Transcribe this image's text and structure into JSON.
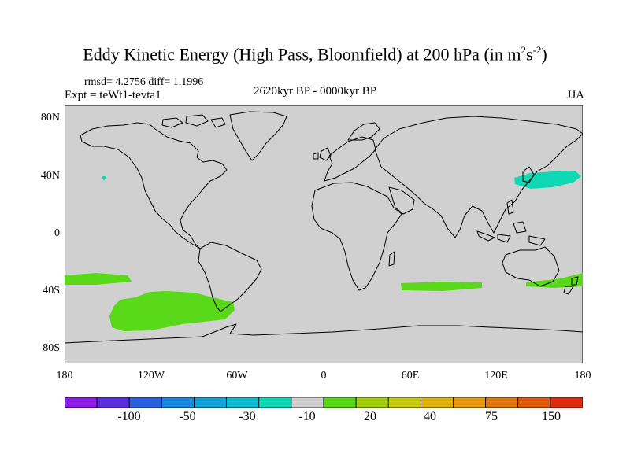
{
  "title": {
    "main": "Eddy Kinetic Energy (High Pass, Bloomfield) at 200 hPa (in m",
    "sup1": "2",
    "mid": "s",
    "sup2": "-2",
    "close": ")"
  },
  "stats": "rmsd= 4.2756 diff= 1.1996",
  "expt": "Expt = teWt1-tevta1",
  "period": "2620kyr BP - 0000kyr BP",
  "season": "JJA",
  "y_ticks": [
    "80N",
    "40N",
    "0",
    "40S",
    "80S"
  ],
  "x_ticks": [
    "180",
    "120W",
    "60W",
    "0",
    "60E",
    "120E",
    "180"
  ],
  "colorbar": {
    "colors": [
      "#8a1ce6",
      "#5a2ee0",
      "#2a5ee0",
      "#1a86e0",
      "#12a2d8",
      "#10bcd0",
      "#10d8b4",
      "#d0d0d0",
      "#5ad81a",
      "#a0d010",
      "#c8cc10",
      "#e0b410",
      "#e89a10",
      "#e07a10",
      "#e05a10",
      "#e02a10"
    ],
    "labels": [
      "-100",
      "-50",
      "-30",
      "-10",
      "20",
      "40",
      "75",
      "150"
    ]
  },
  "colors": {
    "land_ocean": "#d0d0d0",
    "positive": "#5ad81a",
    "negative": "#10d8b4",
    "coast": "#000000"
  }
}
